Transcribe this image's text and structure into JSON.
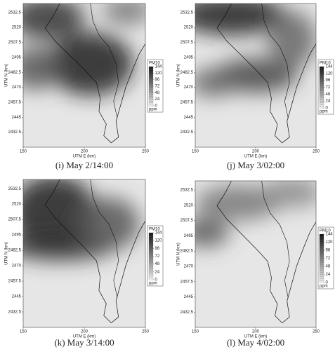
{
  "chart_data": [
    {
      "type": "contour",
      "caption": "(i) May 2/14:00",
      "xlabel": "UTM E (km)",
      "ylabel": "UTM N (km)",
      "xlim": [
        150,
        250
      ],
      "xticks": [
        150,
        200,
        250
      ],
      "ylim": [
        2420,
        2540
      ],
      "yticks": [
        2432.5,
        2445,
        2457.5,
        2470,
        2482.5,
        2495,
        2507.5,
        2520,
        2532.5
      ],
      "colorbar_title": "PM10",
      "colorbar_unit": "ppm",
      "clim": [
        0,
        144
      ],
      "colorbar_ticks": [
        0,
        24,
        48,
        72,
        96,
        120,
        144
      ]
    },
    {
      "type": "contour",
      "caption": "(j) May 3/02:00",
      "xlabel": "UTM E (km)",
      "ylabel": "UTM N (km)",
      "xlim": [
        150,
        250
      ],
      "xticks": [
        150,
        200,
        250
      ],
      "ylim": [
        2420,
        2540
      ],
      "yticks": [
        2432.5,
        2445,
        2457.5,
        2470,
        2482.5,
        2495,
        2507.5,
        2520,
        2532.5
      ],
      "colorbar_title": "PM10",
      "colorbar_unit": "ppm",
      "clim": [
        0,
        144
      ],
      "colorbar_ticks": [
        0,
        24,
        48,
        72,
        96,
        120,
        144
      ]
    },
    {
      "type": "contour",
      "caption": "(k) May 3/14:00",
      "xlabel": "UTM E (km)",
      "ylabel": "UTM N (km)",
      "xlim": [
        150,
        250
      ],
      "xticks": [
        150,
        200,
        250
      ],
      "ylim": [
        2420,
        2540
      ],
      "yticks": [
        2432.5,
        2445,
        2457.5,
        2470,
        2482.5,
        2495,
        2507.5,
        2520,
        2532.5
      ],
      "colorbar_title": "PM10",
      "colorbar_unit": "ppm",
      "clim": [
        0,
        144
      ],
      "colorbar_ticks": [
        0,
        24,
        48,
        72,
        96,
        120,
        144
      ]
    },
    {
      "type": "contour",
      "caption": "(l) May 4/02:00",
      "xlabel": "UTM E (km)",
      "ylabel": "UTM N (km)",
      "xlim": [
        150,
        250
      ],
      "xticks": [
        150,
        200,
        250
      ],
      "ylim": [
        2420,
        2540
      ],
      "yticks": [
        2432.5,
        2445,
        2457.5,
        2470,
        2482.5,
        2495,
        2507.5,
        2520,
        2532.5
      ],
      "colorbar_title": "PM10",
      "colorbar_unit": "ppm",
      "clim": [
        0,
        144
      ],
      "colorbar_ticks": [
        0,
        24,
        48,
        72,
        96,
        120,
        144
      ]
    }
  ]
}
